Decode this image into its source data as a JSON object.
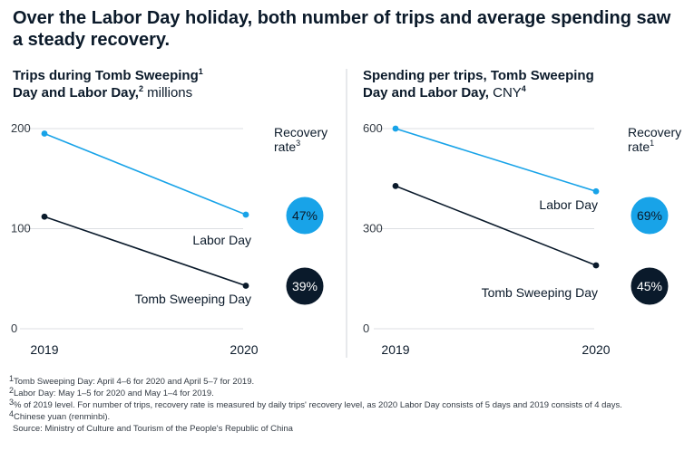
{
  "title_line1": "Over the Labor Day holiday, both number of trips and average spending saw",
  "title_line2": "a steady recovery.",
  "colors": {
    "labor": "#18a3e8",
    "tomb": "#0a1a2b",
    "grid": "#dcdfe3"
  },
  "chart_data": [
    {
      "type": "line",
      "title_line1": "Trips during Tomb Sweeping",
      "title_sup1": "1",
      "title_line2": "Day and Labor Day,",
      "title_sup2": "2",
      "title_unit": " millions",
      "x": [
        "2019",
        "2020"
      ],
      "ylim": [
        0,
        200
      ],
      "yticks": [
        0,
        100,
        200
      ],
      "series": [
        {
          "name": "Labor Day",
          "values": [
            195,
            114
          ]
        },
        {
          "name": "Tomb Sweeping Day",
          "values": [
            112,
            43
          ]
        }
      ],
      "recovery_label_line1": "Recovery",
      "recovery_label_line2": "rate",
      "recovery_sup": "3",
      "recovery": [
        "47%",
        "39%"
      ]
    },
    {
      "type": "line",
      "title_line1": "Spending per trips, Tomb Sweeping",
      "title_line2": "Day and Labor Day,",
      "title_unit": " CNY",
      "title_sup_unit": "4",
      "x": [
        "2019",
        "2020"
      ],
      "ylim": [
        0,
        600
      ],
      "yticks": [
        0,
        300,
        600
      ],
      "series": [
        {
          "name": "Labor Day",
          "values": [
            600,
            412
          ]
        },
        {
          "name": "Tomb Sweeping Day",
          "values": [
            428,
            190
          ]
        }
      ],
      "recovery_label_line1": "Recovery",
      "recovery_label_line2": "rate",
      "recovery_sup": "1",
      "recovery": [
        "69%",
        "45%"
      ]
    }
  ],
  "footnotes": {
    "fn1_sup": "1",
    "fn1": "Tomb Sweeping Day: April 4–6 for 2020 and April 5–7 for 2019.",
    "fn2_sup": "2",
    "fn2": "Labor Day: May 1–5 for 2020 and May 1–4 for 2019.",
    "fn3_sup": "3",
    "fn3": "% of 2019 level. For number of trips, recovery rate is measured by daily trips' recovery level, as 2020 Labor Day consists of 5 days and 2019 consists of 4 days.",
    "fn4_sup": "4",
    "fn4": "Chinese yuan (renminbi).",
    "source": "Source: Ministry of Culture and Tourism of the People's Republic of China"
  }
}
